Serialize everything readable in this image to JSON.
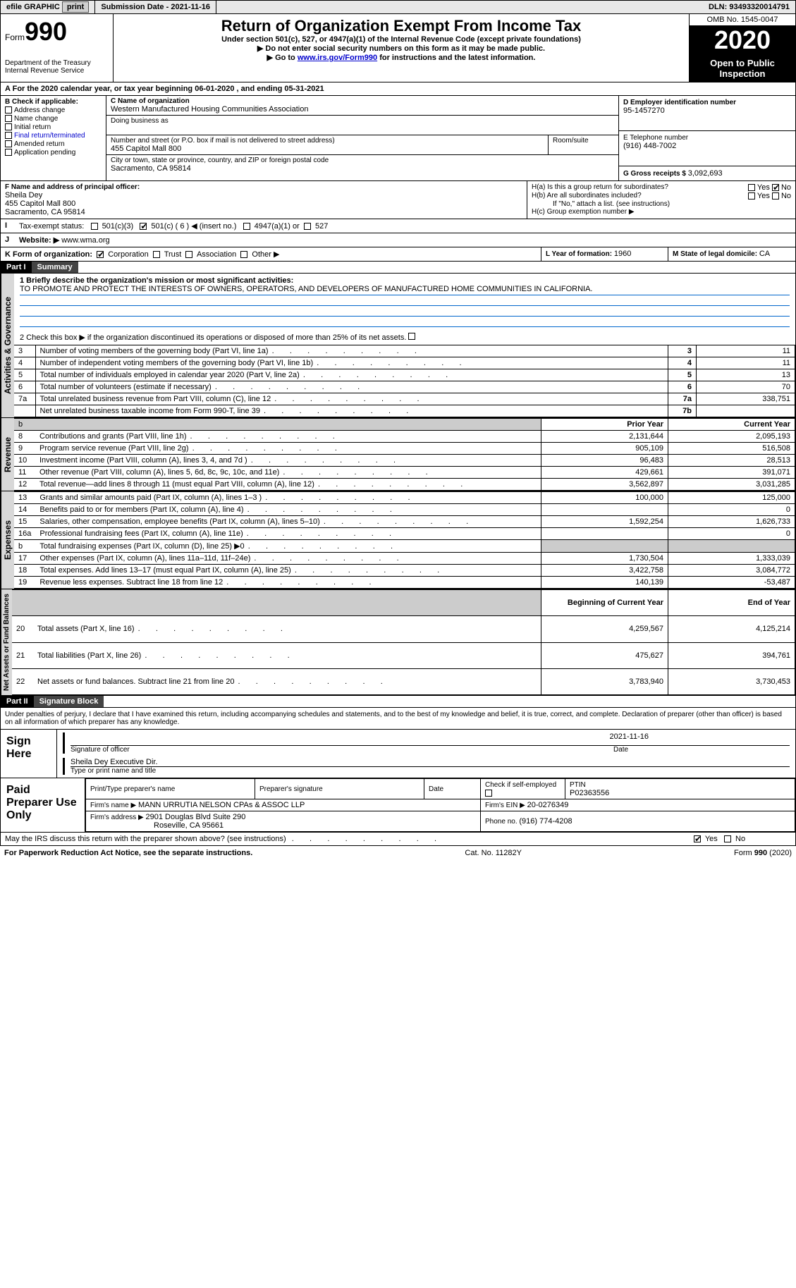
{
  "topbar": {
    "efile": "efile GRAPHIC",
    "print": "print",
    "submission_label": "Submission Date - ",
    "submission_date": "2021-11-16",
    "dln_label": "DLN: ",
    "dln": "93493320014791"
  },
  "header": {
    "form_label": "Form",
    "form_number": "990",
    "dept1": "Department of the Treasury",
    "dept2": "Internal Revenue Service",
    "title": "Return of Organization Exempt From Income Tax",
    "sub1": "Under section 501(c), 527, or 4947(a)(1) of the Internal Revenue Code (except private foundations)",
    "sub2": "▶ Do not enter social security numbers on this form as it may be made public.",
    "sub3_pre": "▶ Go to ",
    "sub3_link": "www.irs.gov/Form990",
    "sub3_post": " for instructions and the latest information.",
    "omb": "OMB No. 1545-0047",
    "year": "2020",
    "open_public": "Open to Public Inspection"
  },
  "periodA": "For the 2020 calendar year, or tax year beginning 06-01-2020    , and ending 05-31-2021",
  "boxB": {
    "title": "B Check if applicable:",
    "items": [
      "Address change",
      "Name change",
      "Initial return",
      "Final return/terminated",
      "Amended return",
      "Application pending"
    ]
  },
  "boxC": {
    "label": "C Name of organization",
    "name": "Western Manufactured Housing Communities Association",
    "dba_label": "Doing business as",
    "addr_label": "Number and street (or P.O. box if mail is not delivered to street address)",
    "room_label": "Room/suite",
    "addr": "455 Capitol Mall 800",
    "city_label": "City or town, state or province, country, and ZIP or foreign postal code",
    "city": "Sacramento, CA  95814"
  },
  "boxD": {
    "label": "D Employer identification number",
    "value": "95-1457270"
  },
  "boxE": {
    "label": "E Telephone number",
    "value": "(916) 448-7002"
  },
  "boxG": {
    "label": "G Gross receipts $ ",
    "value": "3,092,693"
  },
  "boxF": {
    "label": "F  Name and address of principal officer:",
    "name": "Sheila Dey",
    "addr1": "455 Capitol Mall 800",
    "addr2": "Sacramento, CA  95814"
  },
  "boxH": {
    "ha": "H(a)  Is this a group return for subordinates?",
    "hb": "H(b)  Are all subordinates included?",
    "hb_note": "If \"No,\" attach a list. (see instructions)",
    "hc": "H(c)  Group exemption number ▶",
    "yes": "Yes",
    "no": "No"
  },
  "boxI": {
    "label": "Tax-exempt status:",
    "opt1": "501(c)(3)",
    "opt2": "501(c) ( 6 ) ◀ (insert no.)",
    "opt3": "4947(a)(1) or",
    "opt4": "527"
  },
  "boxJ": {
    "label": "Website: ▶",
    "value": "  www.wma.org"
  },
  "boxK": {
    "label": "K Form of organization:",
    "corp": "Corporation",
    "trust": "Trust",
    "assoc": "Association",
    "other": "Other ▶"
  },
  "boxL": {
    "label": "L Year of formation: ",
    "value": "1960"
  },
  "boxM": {
    "label": "M State of legal domicile: ",
    "value": "CA"
  },
  "part1": {
    "tab": "Part I",
    "title": "Summary",
    "q1_label": "1  Briefly describe the organization's mission or most significant activities:",
    "q1_text": "TO PROMOTE AND PROTECT THE INTERESTS OF OWNERS, OPERATORS, AND DEVELOPERS OF MANUFACTURED HOME COMMUNITIES IN CALIFORNIA.",
    "q2": "2    Check this box ▶          if the organization discontinued its operations or disposed of more than 25% of its net assets.",
    "governance_rows": [
      {
        "n": "3",
        "label": "Number of voting members of the governing body (Part VI, line 1a)",
        "box": "3",
        "val": "11"
      },
      {
        "n": "4",
        "label": "Number of independent voting members of the governing body (Part VI, line 1b)",
        "box": "4",
        "val": "11"
      },
      {
        "n": "5",
        "label": "Total number of individuals employed in calendar year 2020 (Part V, line 2a)",
        "box": "5",
        "val": "13"
      },
      {
        "n": "6",
        "label": "Total number of volunteers (estimate if necessary)",
        "box": "6",
        "val": "70"
      },
      {
        "n": "7a",
        "label": "Total unrelated business revenue from Part VIII, column (C), line 12",
        "box": "7a",
        "val": "338,751"
      },
      {
        "n": "",
        "label": "Net unrelated business taxable income from Form 990-T, line 39",
        "box": "7b",
        "val": ""
      }
    ],
    "prior_year": "Prior Year",
    "current_year": "Current Year",
    "revenue_rows": [
      {
        "n": "8",
        "label": "Contributions and grants (Part VIII, line 1h)",
        "py": "2,131,644",
        "cy": "2,095,193"
      },
      {
        "n": "9",
        "label": "Program service revenue (Part VIII, line 2g)",
        "py": "905,109",
        "cy": "516,508"
      },
      {
        "n": "10",
        "label": "Investment income (Part VIII, column (A), lines 3, 4, and 7d )",
        "py": "96,483",
        "cy": "28,513"
      },
      {
        "n": "11",
        "label": "Other revenue (Part VIII, column (A), lines 5, 6d, 8c, 9c, 10c, and 11e)",
        "py": "429,661",
        "cy": "391,071"
      },
      {
        "n": "12",
        "label": "Total revenue—add lines 8 through 11 (must equal Part VIII, column (A), line 12)",
        "py": "3,562,897",
        "cy": "3,031,285"
      }
    ],
    "expense_rows": [
      {
        "n": "13",
        "label": "Grants and similar amounts paid (Part IX, column (A), lines 1–3 )",
        "py": "100,000",
        "cy": "125,000"
      },
      {
        "n": "14",
        "label": "Benefits paid to or for members (Part IX, column (A), line 4)",
        "py": "",
        "cy": "0"
      },
      {
        "n": "15",
        "label": "Salaries, other compensation, employee benefits (Part IX, column (A), lines 5–10)",
        "py": "1,592,254",
        "cy": "1,626,733"
      },
      {
        "n": "16a",
        "label": "Professional fundraising fees (Part IX, column (A), line 11e)",
        "py": "",
        "cy": "0"
      },
      {
        "n": "b",
        "label": "Total fundraising expenses (Part IX, column (D), line 25) ▶0",
        "py": "shade",
        "cy": "shade"
      },
      {
        "n": "17",
        "label": "Other expenses (Part IX, column (A), lines 11a–11d, 11f–24e)",
        "py": "1,730,504",
        "cy": "1,333,039"
      },
      {
        "n": "18",
        "label": "Total expenses. Add lines 13–17 (must equal Part IX, column (A), line 25)",
        "py": "3,422,758",
        "cy": "3,084,772"
      },
      {
        "n": "19",
        "label": "Revenue less expenses. Subtract line 18 from line 12",
        "py": "140,139",
        "cy": "-53,487"
      }
    ],
    "begin_year": "Beginning of Current Year",
    "end_year": "End of Year",
    "net_rows": [
      {
        "n": "20",
        "label": "Total assets (Part X, line 16)",
        "py": "4,259,567",
        "cy": "4,125,214"
      },
      {
        "n": "21",
        "label": "Total liabilities (Part X, line 26)",
        "py": "475,627",
        "cy": "394,761"
      },
      {
        "n": "22",
        "label": "Net assets or fund balances. Subtract line 21 from line 20",
        "py": "3,783,940",
        "cy": "3,730,453"
      }
    ]
  },
  "part2": {
    "tab": "Part II",
    "title": "Signature Block",
    "penalty": "Under penalties of perjury, I declare that I have examined this return, including accompanying schedules and statements, and to the best of my knowledge and belief, it is true, correct, and complete. Declaration of preparer (other than officer) is based on all information of which preparer has any knowledge.",
    "sign_here": "Sign Here",
    "sig_officer": "Signature of officer",
    "date_label": "Date",
    "sig_date": "2021-11-16",
    "officer_name": "Sheila Dey  Executive Dir.",
    "type_name": "Type or print name and title",
    "paid_preparer": "Paid Preparer Use Only",
    "pp_name_label": "Print/Type preparer's name",
    "pp_sig_label": "Preparer's signature",
    "pp_date_label": "Date",
    "pp_check": "Check          if self-employed",
    "ptin_label": "PTIN",
    "ptin": "P02363556",
    "firm_name_label": "Firm's name    ▶ ",
    "firm_name": "MANN URRUTIA NELSON CPAs & ASSOC LLP",
    "firm_ein_label": "Firm's EIN ▶ ",
    "firm_ein": "20-0276349",
    "firm_addr_label": "Firm's address ▶ ",
    "firm_addr1": "2901 Douglas Blvd Suite 290",
    "firm_addr2": "Roseville, CA  95661",
    "phone_label": "Phone no. ",
    "phone": "(916) 774-4208",
    "discuss": "May the IRS discuss this return with the preparer shown above? (see instructions)",
    "yes": "Yes",
    "no": "No"
  },
  "footer": {
    "left": "For Paperwork Reduction Act Notice, see the separate instructions.",
    "mid": "Cat. No. 11282Y",
    "right": "Form 990 (2020)"
  },
  "side_labels": {
    "gov": "Activities & Governance",
    "rev": "Revenue",
    "exp": "Expenses",
    "net": "Net Assets or Fund Balances"
  }
}
